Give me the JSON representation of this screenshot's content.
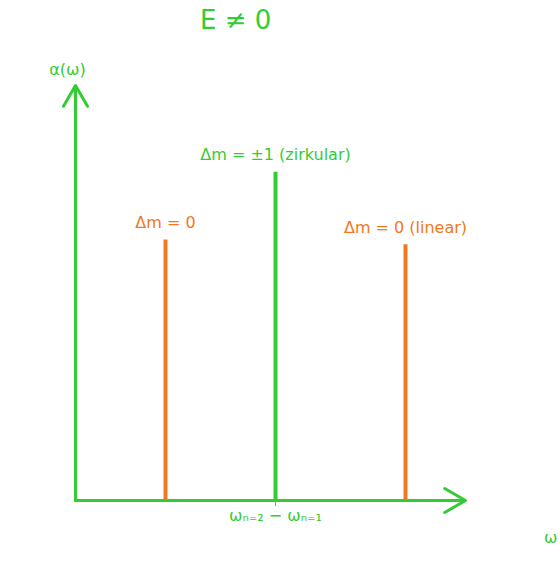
{
  "chart_data": {
    "type": "stem",
    "title": "E ≠ 0",
    "x_label": "ω",
    "y_label": "α(ω)",
    "x": [
      0.9,
      2.0,
      3.3
    ],
    "values": [
      2.7,
      3.4,
      2.65
    ],
    "colors": [
      "#f07820",
      "#33cc33",
      "#f07820"
    ],
    "annotations": [
      "Δm = 0",
      "Δm = ±1 (zirkular)",
      "Δm = 0 (linear)"
    ],
    "color": "#33cc33",
    "xlim": [
      0,
      3.9
    ],
    "ylim": [
      0,
      4.3
    ],
    "xticks": [
      {
        "value": 2.0,
        "label": "ωₙ₌₂ − ωₙ₌₁"
      }
    ],
    "yticks": [],
    "tick_labels": "x",
    "grid": false
  }
}
